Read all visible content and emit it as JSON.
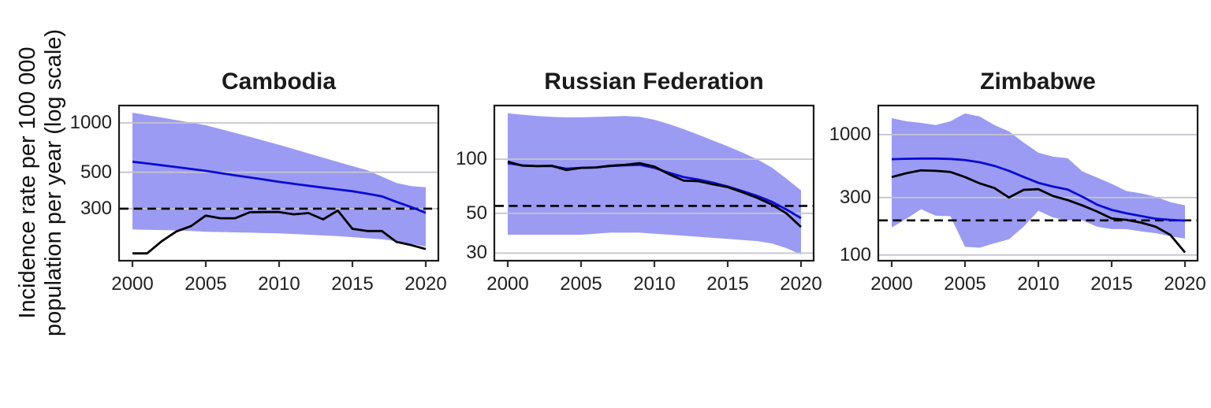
{
  "y_axis_label": {
    "line1": "Incidence rate per 100 000",
    "line2": "population per year (log scale)"
  },
  "colors": {
    "band": "#9b9bf3",
    "estimate_line": "#0a0ad8",
    "notifications_line": "#000000",
    "reference_line": "#000000",
    "grid": "#c4c4cc",
    "border": "#1b1b1b",
    "tick": "#2e2e2e",
    "text": "#1f1f1f"
  },
  "chart_data": [
    {
      "type": "line",
      "title": "Cambodia",
      "yscale": "log",
      "ylim": [
        146,
        1276
      ],
      "yticks": [
        1000,
        500,
        300
      ],
      "ytick_labels": [
        "1000",
        "500",
        "300"
      ],
      "xticks": [
        2000,
        2005,
        2010,
        2015,
        2020
      ],
      "xtick_labels": [
        "2000",
        "2005",
        "2010",
        "2015",
        "2020"
      ],
      "reference_line": 300,
      "x": [
        2000,
        2001,
        2002,
        2003,
        2004,
        2005,
        2006,
        2007,
        2008,
        2009,
        2010,
        2011,
        2012,
        2013,
        2014,
        2015,
        2016,
        2017,
        2018,
        2019,
        2020
      ],
      "series": [
        {
          "name": "estimated_incidence",
          "values": [
            580,
            566,
            552,
            538,
            524,
            510,
            494,
            479,
            465,
            451,
            437,
            425,
            414,
            403,
            393,
            383,
            370,
            357,
            330,
            307,
            283
          ]
        },
        {
          "name": "notifications",
          "values": [
            160,
            160,
            190,
            218,
            235,
            272,
            262,
            262,
            285,
            286,
            286,
            277,
            282,
            258,
            292,
            226,
            219,
            219,
            188,
            180,
            170
          ]
        },
        {
          "name": "uncertainty_upper",
          "values": [
            1155,
            1115,
            1077,
            1040,
            1003,
            968,
            917,
            869,
            823,
            777,
            735,
            692,
            652,
            614,
            578,
            545,
            515,
            471,
            430,
            412,
            405
          ]
        },
        {
          "name": "uncertainty_lower",
          "values": [
            224,
            223,
            222,
            221,
            219,
            217,
            216,
            215,
            214,
            213,
            212,
            210,
            208,
            206,
            204,
            201,
            198,
            195,
            190,
            183,
            176
          ]
        }
      ]
    },
    {
      "type": "line",
      "title": "Russian Federation",
      "yscale": "log",
      "ylim": [
        27.5,
        199
      ],
      "yticks": [
        100,
        50,
        30
      ],
      "ytick_labels": [
        "100",
        "50",
        "30"
      ],
      "xticks": [
        2000,
        2005,
        2010,
        2015,
        2020
      ],
      "xtick_labels": [
        "2000",
        "2005",
        "2010",
        "2015",
        "2020"
      ],
      "reference_line": 55,
      "x": [
        2000,
        2001,
        2002,
        2003,
        2004,
        2005,
        2006,
        2007,
        2008,
        2009,
        2010,
        2011,
        2012,
        2013,
        2014,
        2015,
        2016,
        2017,
        2018,
        2019,
        2020
      ],
      "series": [
        {
          "name": "estimated_incidence",
          "values": [
            95,
            92.5,
            91.5,
            91.5,
            88.5,
            89.5,
            90,
            91.5,
            92.5,
            93,
            89.5,
            84,
            79.5,
            77,
            74,
            70.5,
            66.5,
            62.5,
            58,
            52.5,
            47
          ]
        },
        {
          "name": "notifications",
          "values": [
            97,
            92,
            91.5,
            92,
            87,
            89.5,
            90,
            92,
            93,
            95,
            91,
            82.5,
            76,
            75.5,
            72.5,
            70,
            65.5,
            61,
            56,
            50,
            42
          ]
        },
        {
          "name": "uncertainty_upper",
          "values": [
            180,
            177,
            174,
            172,
            171,
            171,
            172,
            173,
            174,
            172,
            166,
            157,
            147,
            137,
            127,
            118,
            109,
            100,
            90,
            78,
            67
          ]
        },
        {
          "name": "uncertainty_lower",
          "values": [
            38,
            38,
            38,
            38,
            38,
            38,
            38.5,
            39,
            39,
            39,
            38.5,
            38,
            37.5,
            37,
            36.5,
            36,
            35.5,
            35,
            34,
            32,
            29.5
          ]
        }
      ]
    },
    {
      "type": "line",
      "title": "Zimbabwe",
      "yscale": "log",
      "ylim": [
        91,
        1745
      ],
      "yticks": [
        1000,
        300,
        100
      ],
      "ytick_labels": [
        "1000",
        "300",
        "100"
      ],
      "xticks": [
        2000,
        2005,
        2010,
        2015,
        2020
      ],
      "xtick_labels": [
        "2000",
        "2005",
        "2010",
        "2015",
        "2020"
      ],
      "reference_line": 194,
      "x": [
        2000,
        2001,
        2002,
        2003,
        2004,
        2005,
        2006,
        2007,
        2008,
        2009,
        2010,
        2011,
        2012,
        2013,
        2014,
        2015,
        2016,
        2017,
        2018,
        2019,
        2020
      ],
      "series": [
        {
          "name": "estimated_incidence",
          "values": [
            625,
            630,
            633,
            633,
            628,
            615,
            590,
            550,
            500,
            445,
            398,
            370,
            350,
            305,
            262,
            237,
            222,
            211,
            200,
            196,
            193
          ]
        },
        {
          "name": "notifications",
          "values": [
            444,
            478,
            505,
            500,
            490,
            444,
            394,
            360,
            300,
            348,
            352,
            309,
            286,
            258,
            230,
            201,
            196,
            186,
            172,
            147,
            105
          ]
        },
        {
          "name": "uncertainty_upper",
          "values": [
            1372,
            1290,
            1253,
            1200,
            1290,
            1500,
            1415,
            1200,
            1063,
            860,
            708,
            656,
            637,
            495,
            440,
            390,
            340,
            325,
            305,
            275,
            258
          ]
        },
        {
          "name": "uncertainty_lower",
          "values": [
            169,
            200,
            240,
            212,
            210,
            117,
            115,
            125,
            135,
            172,
            233,
            205,
            194,
            194,
            172,
            164,
            164,
            157,
            152,
            143,
            137
          ]
        }
      ]
    }
  ]
}
